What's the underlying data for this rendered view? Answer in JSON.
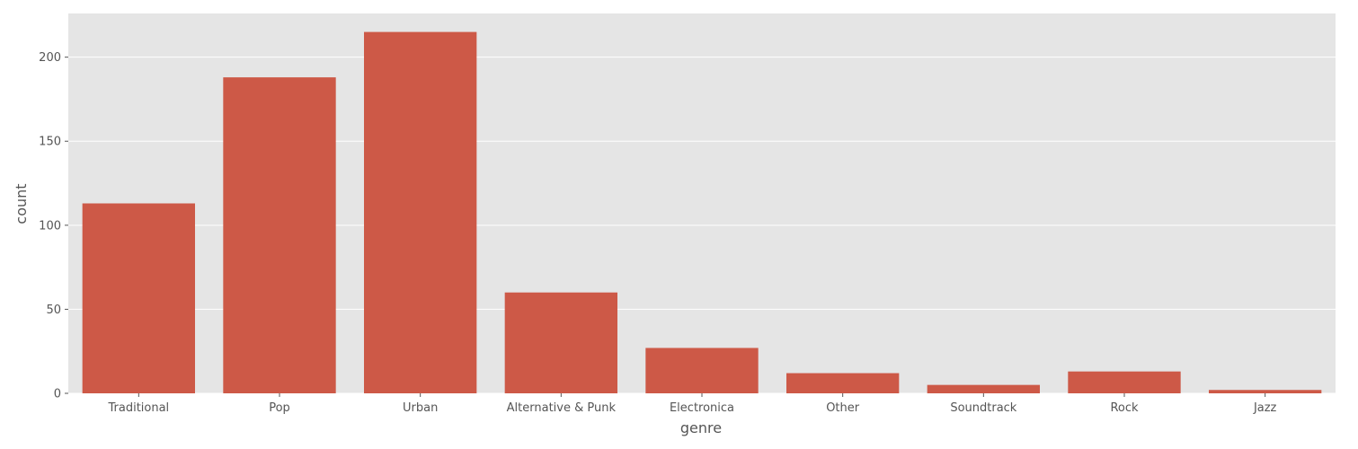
{
  "chart_data": {
    "type": "bar",
    "title": "",
    "xlabel": "genre",
    "ylabel": "count",
    "categories": [
      "Traditional",
      "Pop",
      "Urban",
      "Alternative & Punk",
      "Electronica",
      "Other",
      "Soundtrack",
      "Rock",
      "Jazz"
    ],
    "values": [
      113,
      188,
      215,
      60,
      27,
      12,
      5,
      13,
      2
    ],
    "ylim": [
      0,
      226
    ],
    "yticks": [
      0,
      50,
      100,
      150,
      200
    ],
    "grid": true,
    "legend": "none",
    "colors": {
      "bar": "#cd5947",
      "background": "#e5e5e5",
      "grid": "#ffffff",
      "text": "#555555"
    }
  }
}
